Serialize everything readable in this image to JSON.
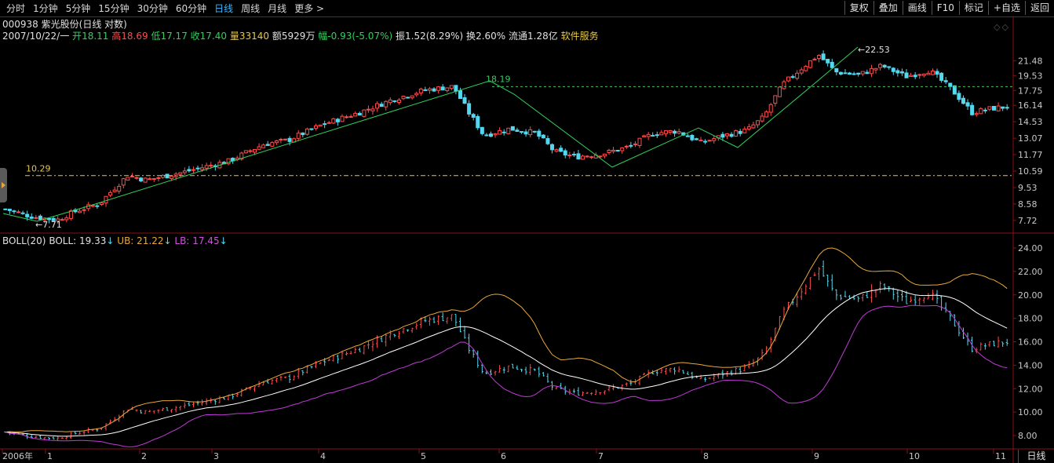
{
  "toolbar": {
    "periods": [
      "分时",
      "1分钟",
      "5分钟",
      "15分钟",
      "30分钟",
      "60分钟",
      "日线",
      "周线",
      "月线",
      "更多 >"
    ],
    "active_period": 6,
    "tools": [
      "复权",
      "叠加",
      "画线",
      "F10",
      "标记",
      "+自选",
      "返回"
    ]
  },
  "stock": {
    "code": "000938",
    "name": "紫光股份",
    "mode": "(日线 对数)",
    "date": "2007/10/22/一",
    "open_label": "开",
    "open": "18.11",
    "high_label": "高",
    "high": "18.69",
    "low_label": "低",
    "low": "17.17",
    "close_label": "收",
    "close": "17.40",
    "volume_label": "量",
    "volume": "33140",
    "amount_label": "额",
    "amount": "5929万",
    "change_label": "幅",
    "change": "-0.93(-5.07%)",
    "amplitude_label": "振",
    "amplitude": "1.52(8.29%)",
    "turnover_label": "换",
    "turnover": "2.60%",
    "float_label": "流通",
    "float_cap": "1.28亿",
    "industry": "软件服务"
  },
  "main_chart": {
    "y_ticks": [
      "21.48",
      "19.53",
      "17.75",
      "16.14",
      "14.53",
      "13.07",
      "11.77",
      "10.59",
      "9.53",
      "8.58",
      "7.72"
    ],
    "annotations": {
      "low": "7.71",
      "high": "22.53",
      "level_1": "10.29",
      "level_2": "18.19"
    }
  },
  "boll": {
    "name": "BOLL(20)",
    "mid_label": "BOLL:",
    "mid": "19.33",
    "ub_label": "UB:",
    "ub": "21.22",
    "lb_label": "LB:",
    "lb": "17.45",
    "arrow": "↓",
    "y_ticks": [
      "24.00",
      "22.00",
      "20.00",
      "18.00",
      "16.00",
      "14.00",
      "12.00",
      "10.00",
      "8.00"
    ]
  },
  "x_axis": {
    "labels": [
      "2006年",
      "1",
      "2",
      "3",
      "4",
      "5",
      "6",
      "7",
      "8",
      "9",
      "10",
      "11"
    ],
    "period_button": "日线"
  },
  "colors": {
    "up": "#ff4b4b",
    "down": "#54d8f0",
    "ma": "#ffffff",
    "ub": "#e8a838",
    "lb": "#c23ad8",
    "trend": "#2fd15a",
    "level": "#e6c84a"
  }
}
